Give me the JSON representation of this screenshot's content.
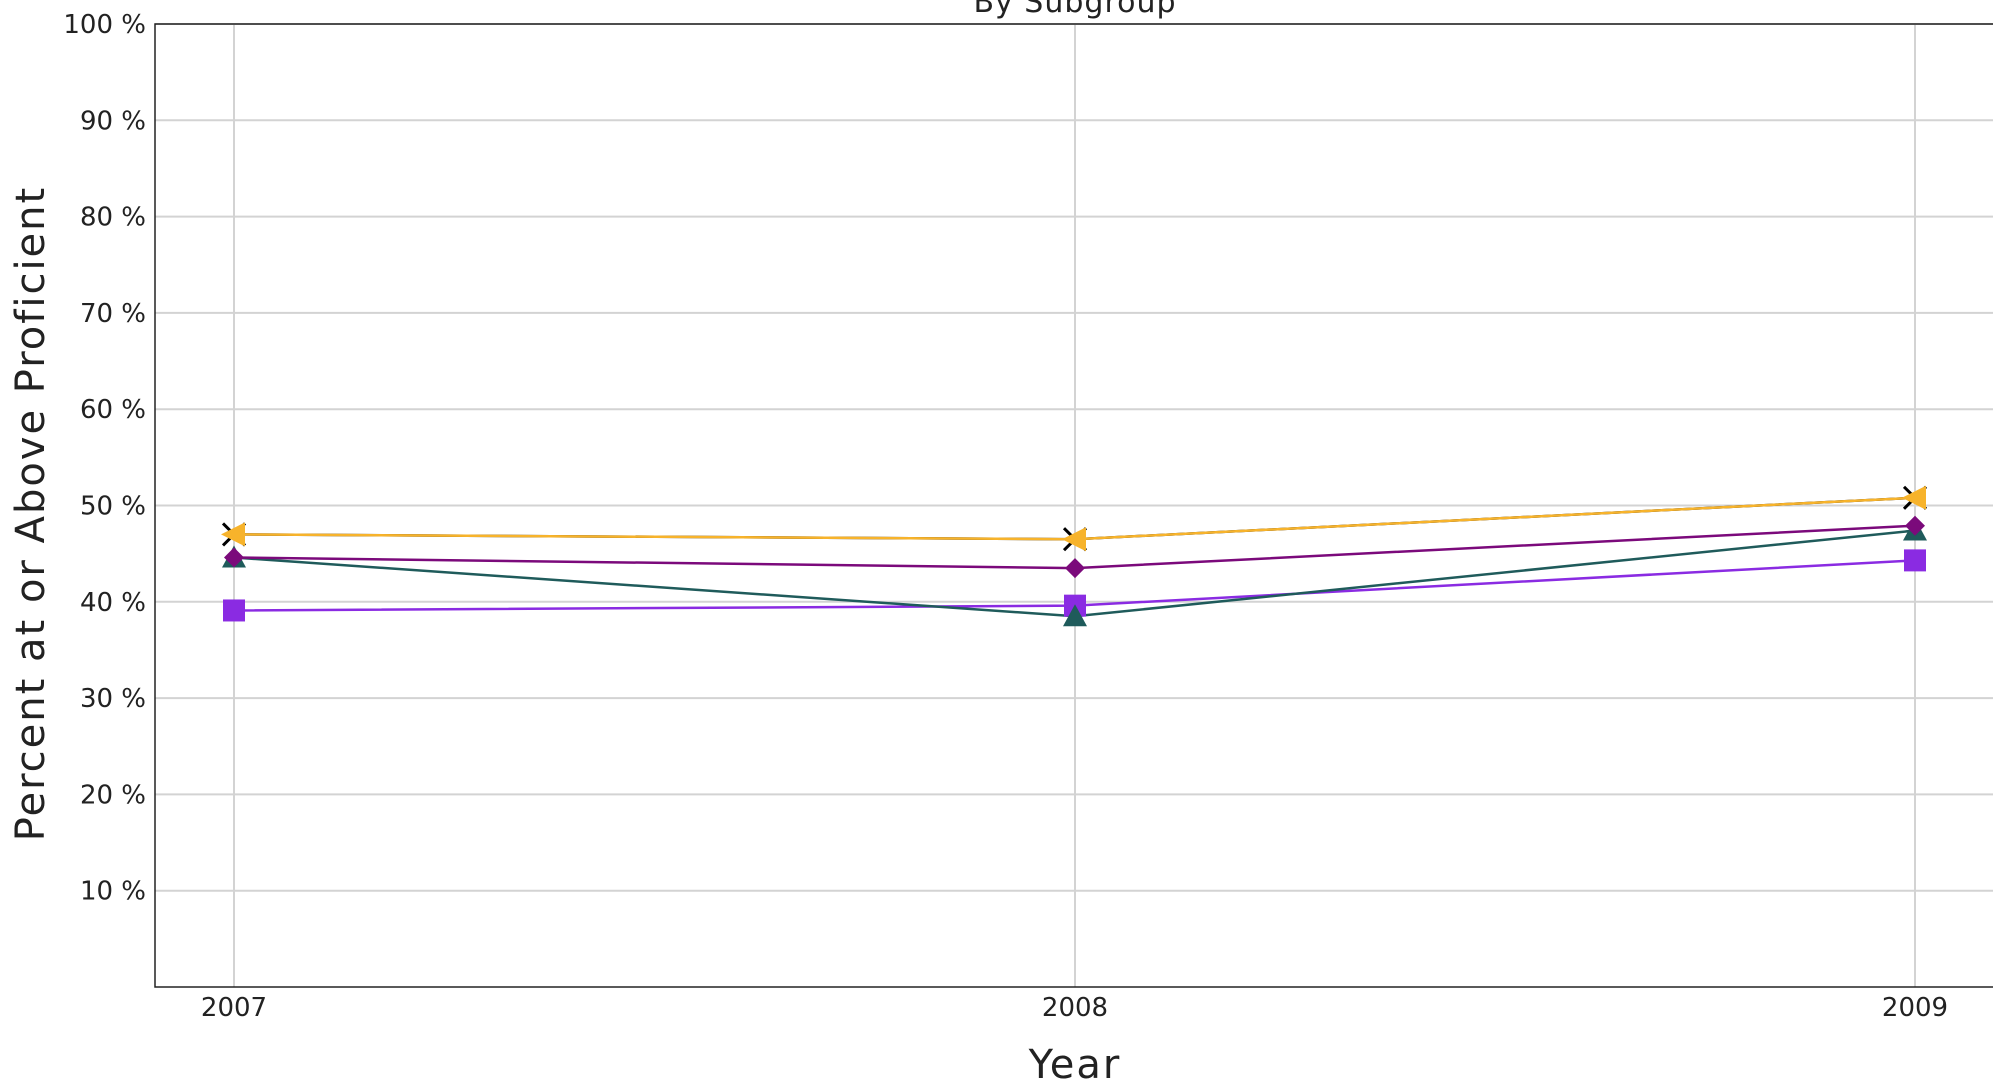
{
  "chart_data": {
    "type": "line",
    "title": "By Subgroup",
    "xlabel": "Year",
    "ylabel": "Percent at or Above Proficient",
    "categories": [
      "2007",
      "2008",
      "2009"
    ],
    "ylim": [
      0,
      100
    ],
    "yticks": [
      "10 %",
      "20 %",
      "30 %",
      "40 %",
      "50 %",
      "60 %",
      "70 %",
      "80 %",
      "90 %",
      "100 %"
    ],
    "grid": true,
    "series": [
      {
        "values": [
          47.0,
          46.5,
          50.8
        ],
        "color": "#000000",
        "marker": "x"
      },
      {
        "values": [
          47.0,
          46.5,
          50.8
        ],
        "color": "#F7B32B",
        "marker": "triangle-left"
      },
      {
        "values": [
          44.6,
          43.5,
          47.9
        ],
        "color": "#7B0A7B",
        "marker": "diamond"
      },
      {
        "values": [
          44.6,
          38.5,
          47.4
        ],
        "color": "#1F5B5B",
        "marker": "triangle-up"
      },
      {
        "values": [
          39.1,
          39.6,
          44.3
        ],
        "color": "#8A2BE2",
        "marker": "square"
      }
    ]
  }
}
